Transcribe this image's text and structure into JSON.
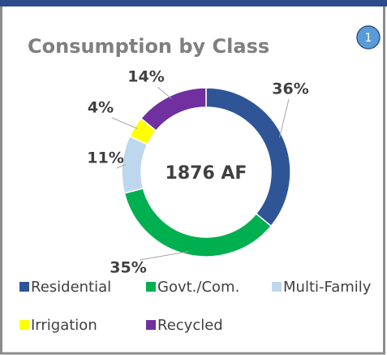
{
  "chart_data": {
    "type": "donut",
    "title": "Consumption by Class",
    "badge": "1",
    "center_label": "1876 AF",
    "categories": [
      "Residential",
      "Govt./Com.",
      "Multi-Family",
      "Irrigation",
      "Recycled"
    ],
    "values": [
      36,
      35,
      11,
      4,
      14
    ],
    "value_labels": [
      "36%",
      "35%",
      "11%",
      "4%",
      "14%"
    ],
    "colors": [
      "#2f5597",
      "#00b050",
      "#bdd7ee",
      "#ffff00",
      "#7030a0"
    ],
    "legend": "bottom"
  }
}
